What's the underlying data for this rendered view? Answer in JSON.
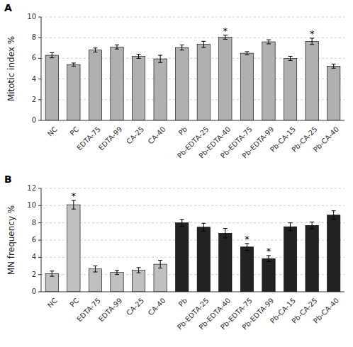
{
  "chart_data": [
    {
      "type": "bar",
      "title": "A",
      "categories": [
        "NC",
        "PC",
        "EDTA-75",
        "EDTA-99",
        "CA-25",
        "CA-40",
        "Pb",
        "Pb-EDTA-25",
        "Pb-EDTA-40",
        "Pb-EDTA-75",
        "Pb-EDTA-99",
        "Pb-CA-15",
        "Pb-CA-25",
        "Pb-CA-40"
      ],
      "values": [
        6.3,
        5.4,
        6.8,
        7.1,
        6.2,
        5.95,
        7.05,
        7.35,
        8.05,
        6.5,
        7.6,
        6.0,
        7.65,
        5.25
      ],
      "errors": [
        0.25,
        0.15,
        0.2,
        0.2,
        0.2,
        0.35,
        0.25,
        0.3,
        0.2,
        0.15,
        0.2,
        0.2,
        0.3,
        0.2
      ],
      "color": "#b0b0b0",
      "annotations": [
        {
          "text": "*",
          "category": "Pb-EDTA-40"
        },
        {
          "text": "*",
          "category": "Pb-CA-25"
        }
      ],
      "y_label": "Mitotic index %",
      "ylim": [
        0,
        10
      ],
      "yticks": [
        0,
        2,
        4,
        6,
        8,
        10
      ],
      "grid": true
    },
    {
      "type": "bar",
      "title": "B",
      "categories": [
        "NC",
        "PC",
        "EDTA-75",
        "EDTA-99",
        "CA-25",
        "CA-40",
        "Pb",
        "Pb-EDTA-25",
        "Pb-EDTA-40",
        "Pb-EDTA-75",
        "Pb-EDTA-99",
        "Pb-CA-15",
        "Pb-CA-25",
        "Pb-CA-40"
      ],
      "values": [
        2.1,
        10.1,
        2.65,
        2.25,
        2.5,
        3.2,
        8.0,
        7.5,
        6.8,
        5.2,
        3.85,
        7.55,
        7.7,
        8.9
      ],
      "errors": [
        0.3,
        0.5,
        0.35,
        0.25,
        0.3,
        0.45,
        0.4,
        0.45,
        0.55,
        0.4,
        0.35,
        0.45,
        0.4,
        0.5
      ],
      "colors": [
        "#c0c0c0",
        "#c0c0c0",
        "#c0c0c0",
        "#c0c0c0",
        "#c0c0c0",
        "#c0c0c0",
        "#222222",
        "#222222",
        "#222222",
        "#222222",
        "#222222",
        "#222222",
        "#222222",
        "#222222"
      ],
      "annotations": [
        {
          "text": "*",
          "category": "PC"
        },
        {
          "text": "*",
          "category": "Pb-EDTA-75"
        },
        {
          "text": "*",
          "category": "Pb-EDTA-99"
        }
      ],
      "y_label": "MN frequency %",
      "ylim": [
        0,
        12
      ],
      "yticks": [
        0,
        2,
        4,
        6,
        8,
        10,
        12
      ],
      "grid": true
    }
  ]
}
